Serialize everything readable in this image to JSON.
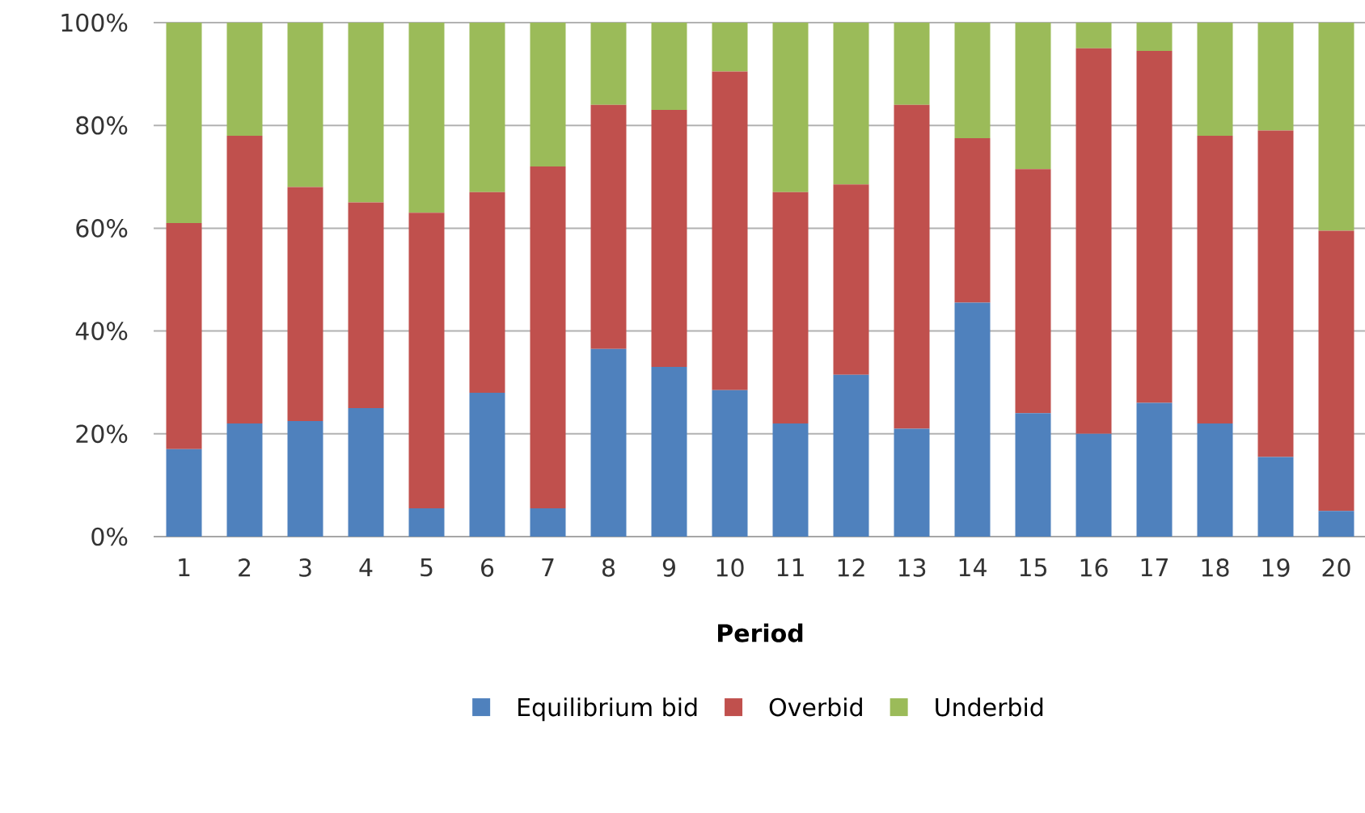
{
  "chart_data": {
    "type": "bar",
    "stacked": true,
    "xlabel": "Period",
    "categories": [
      "1",
      "2",
      "3",
      "4",
      "5",
      "6",
      "7",
      "8",
      "9",
      "10",
      "11",
      "12",
      "13",
      "14",
      "15",
      "16",
      "17",
      "18",
      "19",
      "20"
    ],
    "series": [
      {
        "name": "Equilibrium bid",
        "color": "#4f81bd",
        "values": [
          17,
          22,
          22.5,
          25,
          5.5,
          28,
          5.5,
          36.5,
          33,
          28.5,
          22,
          31.5,
          21,
          45.5,
          24,
          20,
          26,
          22,
          15.5,
          5
        ]
      },
      {
        "name": "Overbid",
        "color": "#c0504d",
        "values": [
          44,
          56,
          45.5,
          40,
          57.5,
          39,
          66.5,
          47.5,
          50,
          62,
          45,
          37,
          63,
          32,
          47.5,
          75,
          68.5,
          56,
          63.5,
          54.5
        ]
      },
      {
        "name": "Underbid",
        "color": "#9bbb59",
        "values": [
          39,
          22,
          32,
          35,
          37,
          33,
          28,
          16,
          17,
          9.5,
          33,
          31.5,
          16,
          22.5,
          28.5,
          5,
          5.5,
          22,
          21,
          40.5
        ]
      }
    ],
    "ylim": [
      0,
      100
    ],
    "yticks": [
      {
        "value": 0,
        "label": "0%"
      },
      {
        "value": 20,
        "label": "20%"
      },
      {
        "value": 40,
        "label": "40%"
      },
      {
        "value": 60,
        "label": "60%"
      },
      {
        "value": 80,
        "label": "80%"
      },
      {
        "value": 100,
        "label": "100%"
      }
    ],
    "grid": "y",
    "legend": "bottom"
  }
}
